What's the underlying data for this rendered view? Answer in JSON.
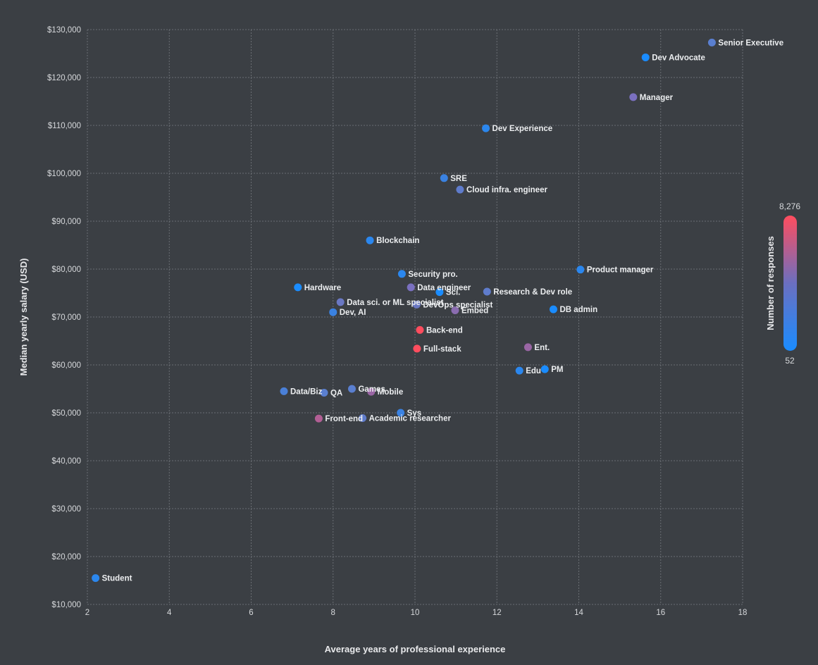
{
  "chart_data": {
    "type": "scatter",
    "xlabel": "Average years of professional experience",
    "ylabel": "Median yearly salary (USD)",
    "xlim": [
      2,
      18
    ],
    "ylim": [
      10000,
      130000
    ],
    "x_ticks": [
      2,
      4,
      6,
      8,
      10,
      12,
      14,
      16,
      18
    ],
    "x_tick_labels": [
      "2",
      "4",
      "6",
      "8",
      "10",
      "12",
      "14",
      "16",
      "18"
    ],
    "y_ticks": [
      10000,
      20000,
      30000,
      40000,
      50000,
      60000,
      70000,
      80000,
      90000,
      100000,
      110000,
      120000,
      130000
    ],
    "y_tick_labels": [
      "$10,000",
      "$20,000",
      "$30,000",
      "$40,000",
      "$50,000",
      "$60,000",
      "$70,000",
      "$80,000",
      "$90,000",
      "$100,000",
      "$110,000",
      "$120,000",
      "$130,000"
    ],
    "grid": true,
    "colorbar": {
      "title": "Number of responses",
      "min": 52,
      "max": 8276,
      "min_label": "52",
      "max_label": "8,276",
      "color_low": "#1a8cff",
      "color_mid": "#6b6fc0",
      "color_high": "#ff4d5e"
    },
    "points": [
      {
        "label": "Senior Executive",
        "x": 17.25,
        "y": 127300,
        "color": "#5a7fd0"
      },
      {
        "label": "Dev Advocate",
        "x": 15.63,
        "y": 124200,
        "color": "#1a8cff"
      },
      {
        "label": "Manager",
        "x": 15.33,
        "y": 115900,
        "color": "#7a70c0"
      },
      {
        "label": "Dev Experience",
        "x": 11.73,
        "y": 109400,
        "color": "#2b87ee"
      },
      {
        "label": "SRE",
        "x": 10.71,
        "y": 99000,
        "color": "#3a82e2"
      },
      {
        "label": "Cloud infra. engineer",
        "x": 11.1,
        "y": 96600,
        "color": "#5f7ccc"
      },
      {
        "label": "Blockchain",
        "x": 8.9,
        "y": 86000,
        "color": "#2b87ee"
      },
      {
        "label": "Security pro.",
        "x": 9.68,
        "y": 79000,
        "color": "#2b87ee"
      },
      {
        "label": "Product manager",
        "x": 14.04,
        "y": 79900,
        "color": "#2b87ee"
      },
      {
        "label": "Hardware",
        "x": 7.14,
        "y": 76200,
        "color": "#1a8cff"
      },
      {
        "label": "Data engineer",
        "x": 9.9,
        "y": 76200,
        "color": "#7a70c0"
      },
      {
        "label": "Sci.",
        "x": 10.6,
        "y": 75200,
        "color": "#1a8cff"
      },
      {
        "label": "Research & Dev role",
        "x": 11.76,
        "y": 75300,
        "color": "#5f7ccc"
      },
      {
        "label": "Data sci. or ML specialist",
        "x": 8.18,
        "y": 73100,
        "color": "#6a78c4"
      },
      {
        "label": "DevOps specialist",
        "x": 10.04,
        "y": 72600,
        "color": "#6a78c4"
      },
      {
        "label": "Dev, AI",
        "x": 8.0,
        "y": 71000,
        "color": "#3a82e2"
      },
      {
        "label": "Embed",
        "x": 10.98,
        "y": 71400,
        "color": "#8a6cb0"
      },
      {
        "label": "DB admin",
        "x": 13.38,
        "y": 71600,
        "color": "#1a8cff"
      },
      {
        "label": "Back-end",
        "x": 10.12,
        "y": 67300,
        "color": "#ff4d5e"
      },
      {
        "label": "Full-stack",
        "x": 10.05,
        "y": 63400,
        "color": "#ff4d5e"
      },
      {
        "label": "Ent.",
        "x": 12.76,
        "y": 63700,
        "color": "#9a66a5"
      },
      {
        "label": "Edu",
        "x": 12.55,
        "y": 58800,
        "color": "#2b87ee"
      },
      {
        "label": "PM",
        "x": 13.17,
        "y": 59100,
        "color": "#1a8cff"
      },
      {
        "label": "Data/Biz",
        "x": 6.8,
        "y": 54500,
        "color": "#4a80d8"
      },
      {
        "label": "QA",
        "x": 7.78,
        "y": 54200,
        "color": "#5a7fd0"
      },
      {
        "label": "Games",
        "x": 8.46,
        "y": 55000,
        "color": "#5a7fd0"
      },
      {
        "label": "Mobile",
        "x": 8.93,
        "y": 54400,
        "color": "#9a66a5"
      },
      {
        "label": "Sys",
        "x": 9.65,
        "y": 50000,
        "color": "#3a82e2"
      },
      {
        "label": "Front-end",
        "x": 7.65,
        "y": 48800,
        "color": "#b25f95"
      },
      {
        "label": "Academic researcher",
        "x": 8.72,
        "y": 48900,
        "color": "#5f7ccc"
      },
      {
        "label": "Student",
        "x": 2.2,
        "y": 15500,
        "color": "#2b87ee"
      }
    ]
  }
}
